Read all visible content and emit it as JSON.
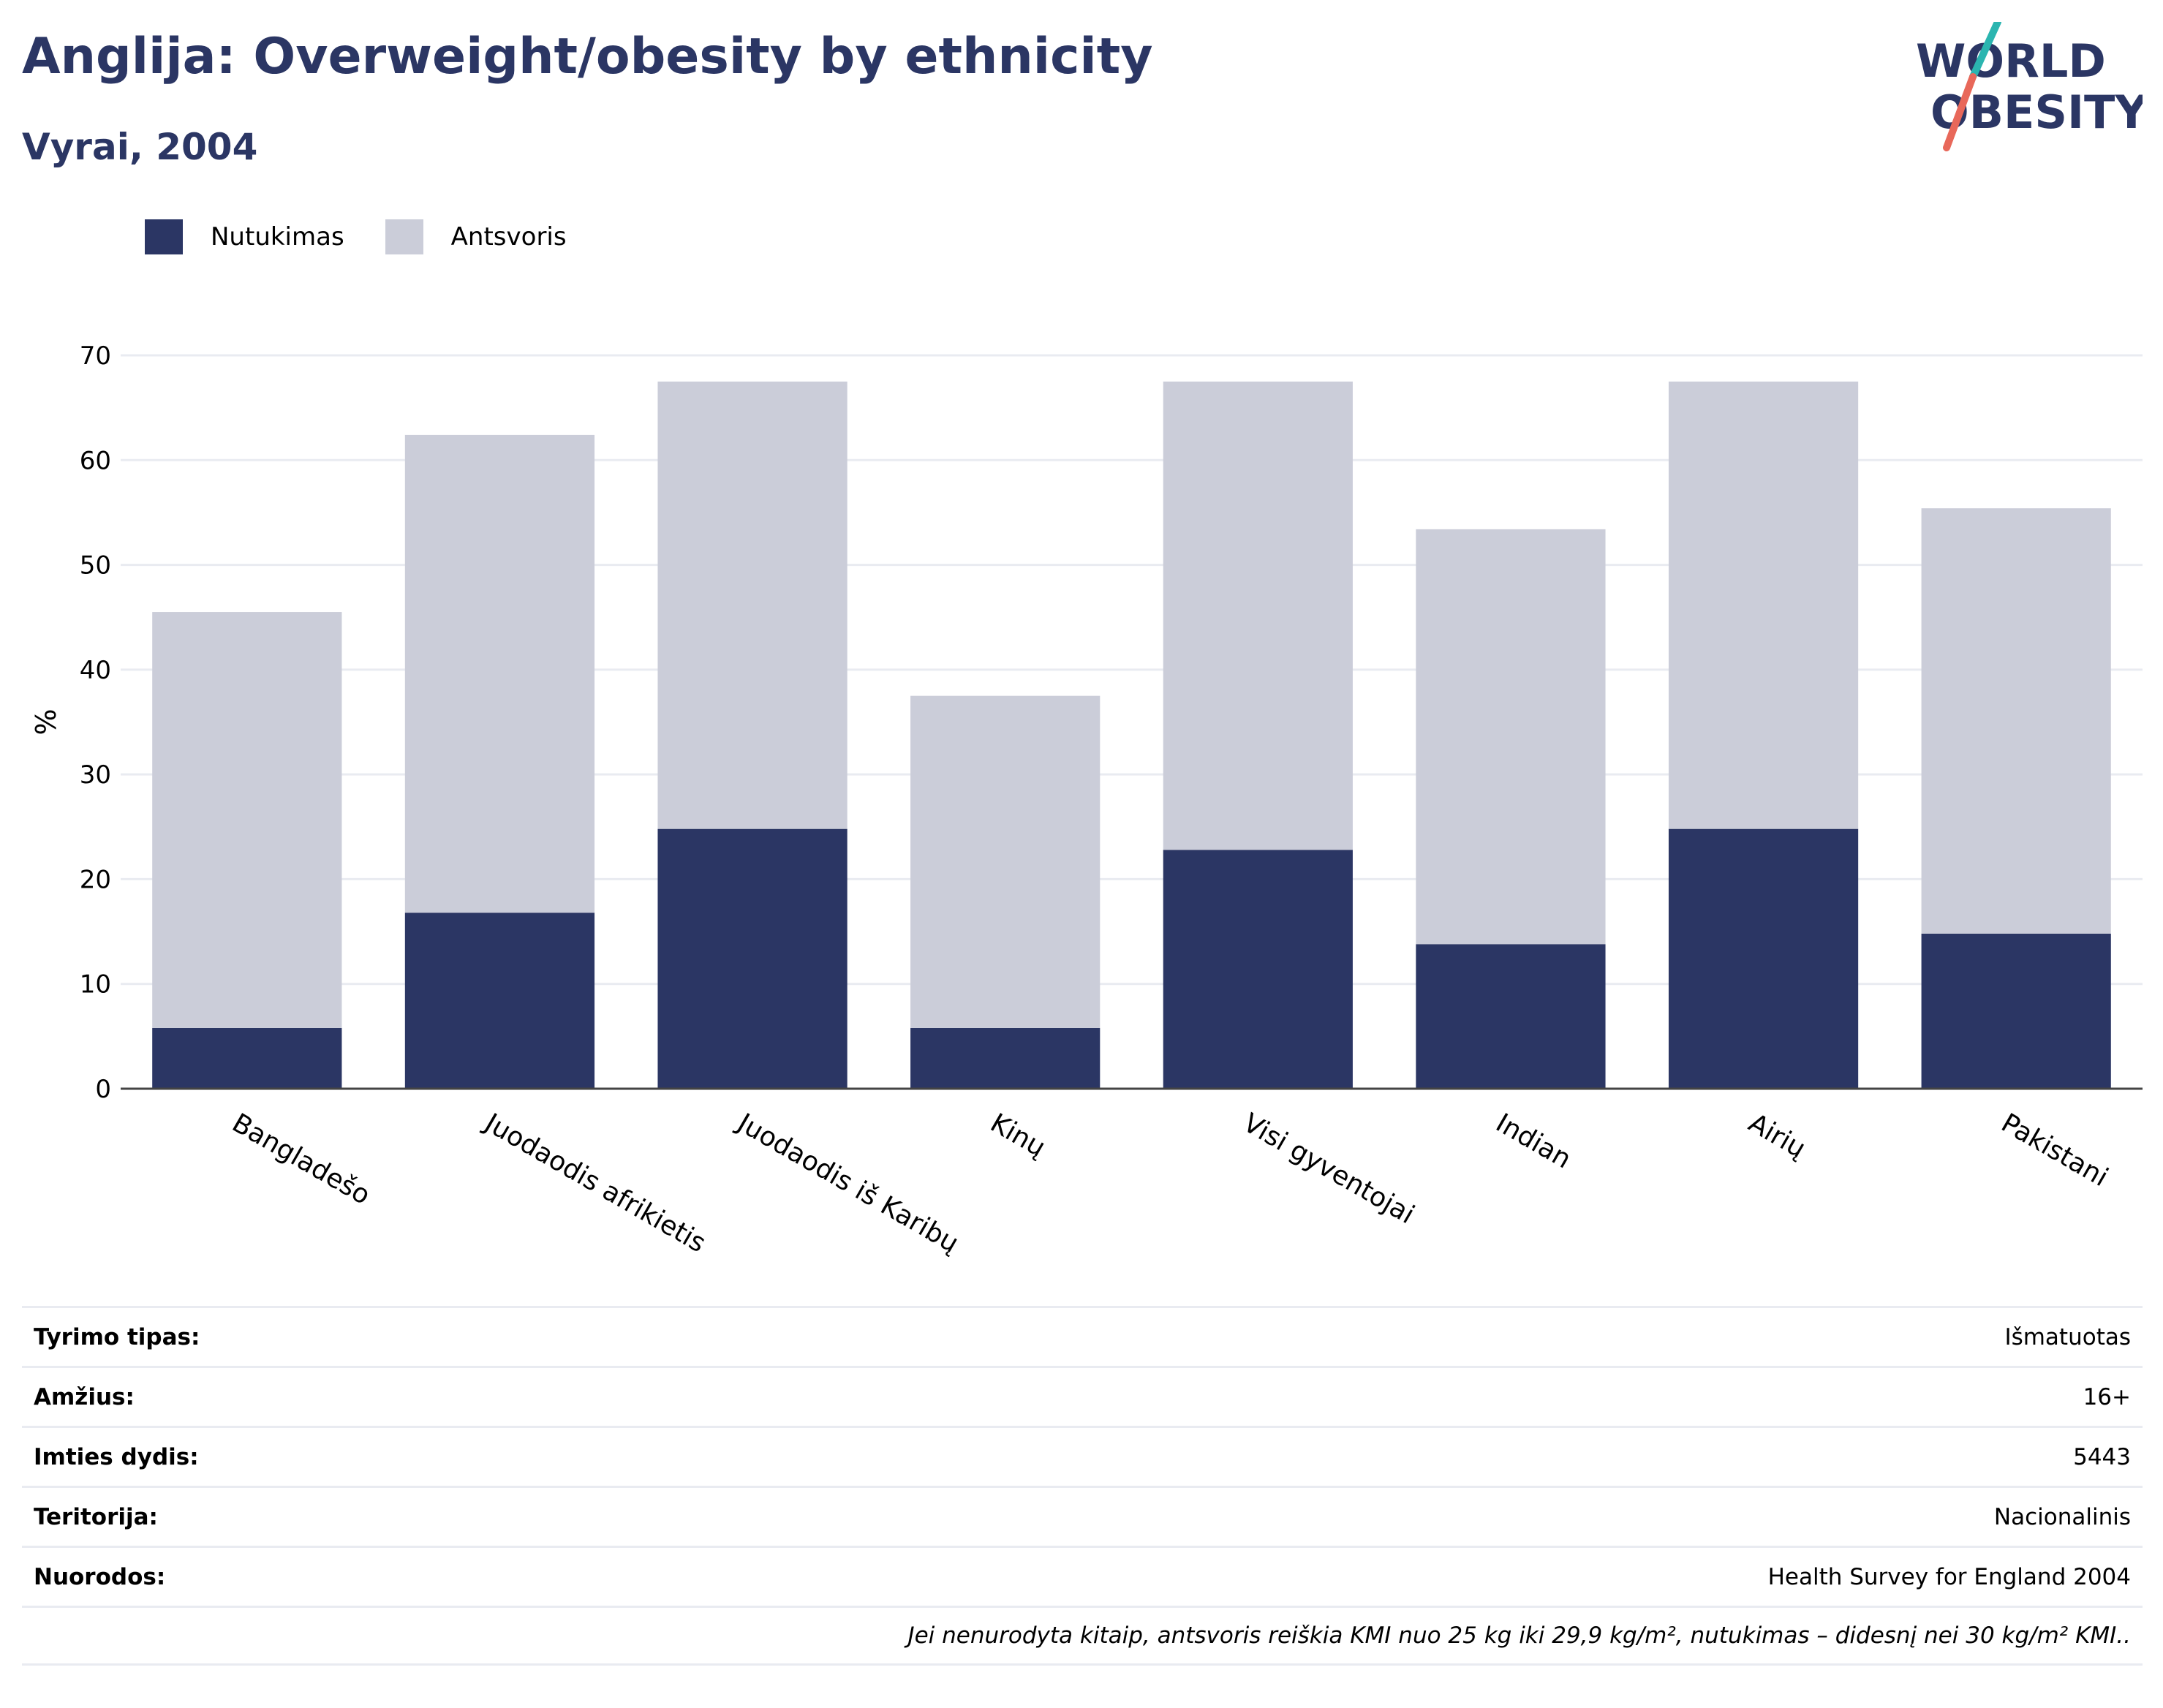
{
  "title": "Anglija: Overweight/obesity by ethnicity",
  "subtitle": "Vyrai, 2004",
  "logo": {
    "line1": "WORLD",
    "line2": "OBESITY",
    "accent_colors": [
      "#2bb5b0",
      "#e8685a"
    ],
    "text_color": "#2b3664"
  },
  "legend": [
    {
      "label": "Nutukimas",
      "color": "#2b3664"
    },
    {
      "label": "Antsvoris",
      "color": "#cbcdd9"
    }
  ],
  "chart_data": {
    "type": "bar",
    "stacked": true,
    "categories": [
      "Bangladešo",
      "Juodaodis afrikietis",
      "Juodaodis iš Karibų",
      "Kinų",
      "Visi gyventojai",
      "Indian",
      "Airių",
      "Pakistani"
    ],
    "series": [
      {
        "name": "Nutukimas",
        "color": "#2b3664",
        "values": [
          5.8,
          16.8,
          24.8,
          5.8,
          22.8,
          13.8,
          24.8,
          14.8
        ]
      },
      {
        "name": "Antsvoris",
        "color": "#cbcdd9",
        "values": [
          39.7,
          45.6,
          42.7,
          31.7,
          44.7,
          39.6,
          42.7,
          40.6
        ]
      }
    ],
    "ylabel": "%",
    "ylim": [
      0,
      70
    ],
    "yticks": [
      0,
      10,
      20,
      30,
      40,
      50,
      60,
      70
    ],
    "grid": true,
    "legend_position": "top-left"
  },
  "info": [
    {
      "key": "Tyrimo tipas:",
      "value": "Išmatuotas"
    },
    {
      "key": "Amžius:",
      "value": "16+"
    },
    {
      "key": "Imties dydis:",
      "value": "5443"
    },
    {
      "key": "Teritorija:",
      "value": "Nacionalinis"
    },
    {
      "key": "Nuorodos:",
      "value": "Health Survey for England 2004"
    }
  ],
  "note": "Jei nenurodyta kitaip, antsvoris reiškia KMI nuo 25 kg iki 29,9 kg/m², nutukimas – didesnį nei 30 kg/m² KMI.."
}
